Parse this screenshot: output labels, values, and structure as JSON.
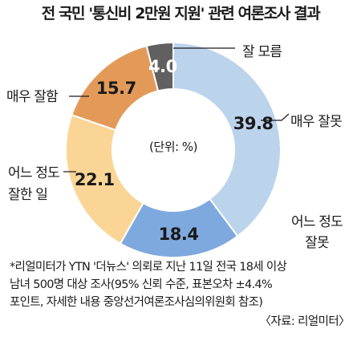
{
  "chart_data": {
    "type": "pie",
    "title": "전 국민 '통신비 2만원 지원' 관련 여론조사 결과",
    "center_label": "(단위: %)",
    "slices": [
      {
        "label": "매우 잘못",
        "value": 39.8,
        "color": "#bcd3ec"
      },
      {
        "label": "어느 정도 잘못",
        "value": 18.4,
        "color": "#7ea9de"
      },
      {
        "label": "어느 정도 잘한 일",
        "value": 22.1,
        "color": "#fad596"
      },
      {
        "label": "매우 잘함",
        "value": 15.7,
        "color": "#e39a59"
      },
      {
        "label": "잘 모름",
        "value": 4.0,
        "color": "#606060"
      }
    ]
  },
  "labels": {
    "slice0": [
      "매우 잘못"
    ],
    "slice1": [
      "어느 정도",
      "잘못"
    ],
    "slice2": [
      "어느 정도",
      "잘한 일"
    ],
    "slice3": [
      "매우 잘함"
    ],
    "slice4": [
      "잘 모름"
    ]
  },
  "footnote": {
    "lines": [
      "*리얼미터가 YTN '더뉴스' 의뢰로 지난 11일 전국 18세 이상",
      "남녀 500명 대상 조사(95% 신뢰 수준, 표본오차 ±4.4%",
      "포인트, 자세한 내용 중앙선거여론조사심의위원회 참조)"
    ],
    "source": "〈자료: 리얼미터〉"
  }
}
